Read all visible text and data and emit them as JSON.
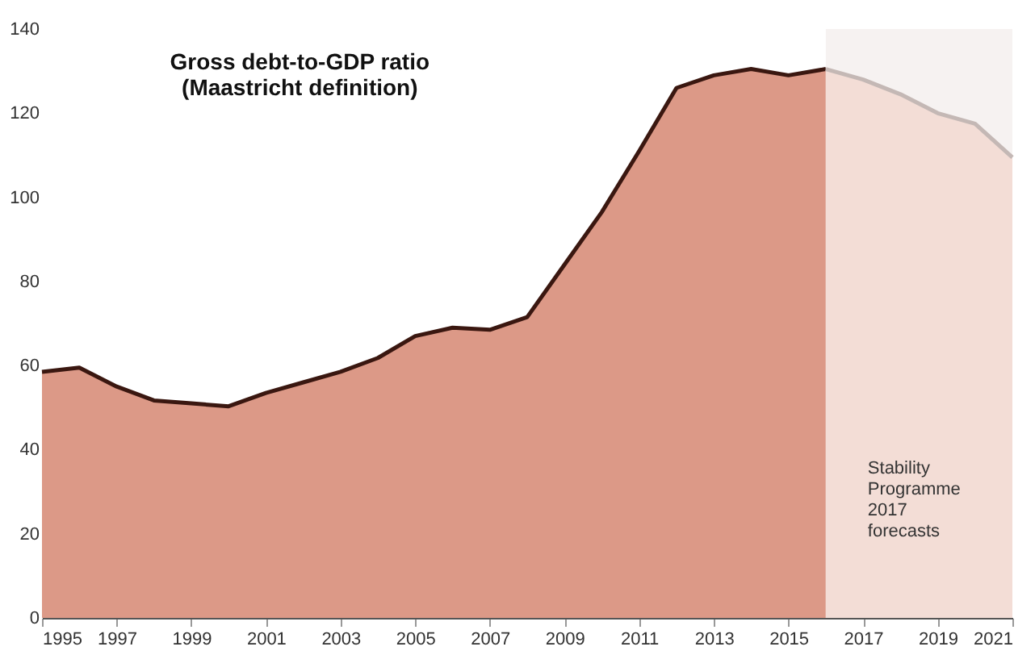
{
  "chart_data": {
    "type": "area",
    "title": [
      "Gross debt-to-GDP ratio",
      "(Maastricht definition)"
    ],
    "series": [
      {
        "color": "#dc9987",
        "x": [
          1995,
          1996,
          1997,
          1998,
          1999,
          2000,
          2001,
          2002,
          2003,
          2004,
          2005,
          2006,
          2007,
          2008,
          2009,
          2010,
          2011,
          2012,
          2013,
          2014,
          2015,
          2016
        ],
        "values": [
          58.5,
          59.5,
          55,
          51.7,
          51,
          50.3,
          53.5,
          56,
          58.5,
          61.8,
          67,
          69,
          68.5,
          71.5,
          84,
          96.5,
          111,
          126,
          129,
          130.5,
          129,
          130.5
        ]
      },
      {
        "color": "#f3ddd6",
        "x": [
          2016,
          2017,
          2018,
          2019,
          2020,
          2021
        ],
        "values": [
          130.5,
          128,
          124.5,
          120,
          117.5,
          109.5
        ]
      }
    ],
    "bands": [
      {
        "axis": "x",
        "from": 2016,
        "to": 2021,
        "label": [
          "Stability",
          "Programme",
          "2017",
          "forecasts"
        ],
        "color": "#f6f2f1"
      }
    ],
    "xlim": [
      1995,
      2021
    ],
    "xticks": [
      1995,
      1997,
      1999,
      2001,
      2003,
      2005,
      2007,
      2009,
      2011,
      2013,
      2015,
      2017,
      2019,
      2021
    ],
    "ylim": [
      0,
      140
    ],
    "yticks": [
      0,
      20,
      40,
      60,
      80,
      100,
      120,
      140
    ],
    "grid": false
  }
}
